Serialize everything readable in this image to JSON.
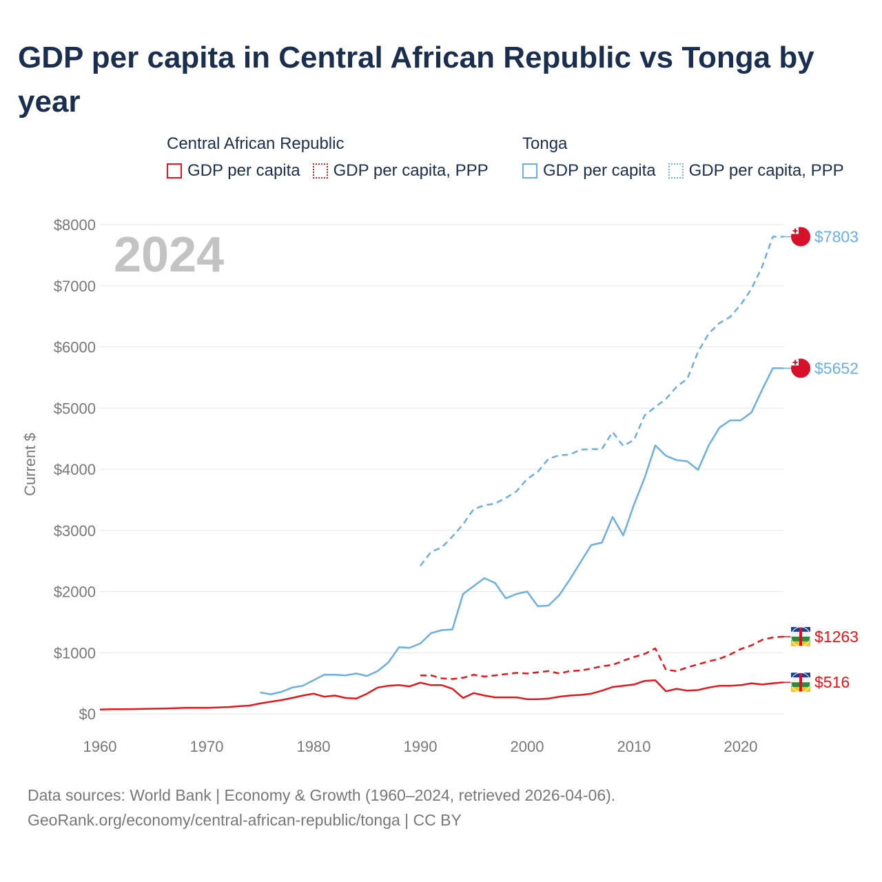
{
  "title": "GDP per capita in Central African Republic vs Tonga by year",
  "legend": {
    "groups": [
      {
        "country": "Central African Republic",
        "color": "#e8141a",
        "items": [
          {
            "label": "GDP per capita",
            "style": "solid"
          },
          {
            "label": "GDP per capita, PPP",
            "style": "dotted"
          }
        ]
      },
      {
        "country": "Tonga",
        "color": "#6aaee6",
        "items": [
          {
            "label": "GDP per capita",
            "style": "solid"
          },
          {
            "label": "GDP per capita, PPP",
            "style": "dotted"
          }
        ]
      }
    ]
  },
  "footer": {
    "sources": "Data sources: World Bank | Economy & Growth (1960–2024, retrieved 2026-04-06).",
    "link": "GeoRank.org/economy/central-african-republic/tonga | CC BY"
  },
  "chart_data": {
    "type": "line",
    "year_label": "2024",
    "ylabel": "Current $",
    "xlim": [
      1960,
      2024
    ],
    "ylim": [
      0,
      8000
    ],
    "x_ticks": [
      1960,
      1970,
      1980,
      1990,
      2000,
      2010,
      2020
    ],
    "x_tick_labels": [
      "1960",
      "1970",
      "1980",
      "1990",
      "2000",
      "2010",
      "2020"
    ],
    "y_ticks": [
      0,
      1000,
      2000,
      3000,
      4000,
      5000,
      6000,
      7000,
      8000
    ],
    "y_tick_labels": [
      "$0",
      "$1000",
      "$2000",
      "$3000",
      "$4000",
      "$5000",
      "$6000",
      "$7000",
      "$8000"
    ],
    "grid": true,
    "series": [
      {
        "name": "Tonga GDP per capita, PPP",
        "country": "Tonga",
        "color": "#6aaee6",
        "dash": true,
        "end_label": "$7803",
        "points": [
          [
            1990,
            2420
          ],
          [
            1991,
            2650
          ],
          [
            1992,
            2720
          ],
          [
            1993,
            2900
          ],
          [
            1994,
            3100
          ],
          [
            1995,
            3350
          ],
          [
            1996,
            3410
          ],
          [
            1997,
            3440
          ],
          [
            1998,
            3530
          ],
          [
            1999,
            3640
          ],
          [
            2000,
            3840
          ],
          [
            2001,
            3960
          ],
          [
            2002,
            4170
          ],
          [
            2003,
            4230
          ],
          [
            2004,
            4240
          ],
          [
            2005,
            4320
          ],
          [
            2006,
            4330
          ],
          [
            2007,
            4330
          ],
          [
            2008,
            4610
          ],
          [
            2009,
            4380
          ],
          [
            2010,
            4480
          ],
          [
            2011,
            4880
          ],
          [
            2012,
            5020
          ],
          [
            2013,
            5150
          ],
          [
            2014,
            5350
          ],
          [
            2015,
            5480
          ],
          [
            2016,
            5920
          ],
          [
            2017,
            6220
          ],
          [
            2018,
            6390
          ],
          [
            2019,
            6490
          ],
          [
            2020,
            6690
          ],
          [
            2021,
            6950
          ],
          [
            2022,
            7310
          ],
          [
            2023,
            7803
          ],
          [
            2024,
            7803
          ]
        ]
      },
      {
        "name": "Tonga GDP per capita",
        "country": "Tonga",
        "color": "#6aaee6",
        "dash": false,
        "end_label": "$5652",
        "points": [
          [
            1975,
            350
          ],
          [
            1976,
            320
          ],
          [
            1977,
            360
          ],
          [
            1978,
            430
          ],
          [
            1979,
            460
          ],
          [
            1980,
            550
          ],
          [
            1981,
            640
          ],
          [
            1982,
            640
          ],
          [
            1983,
            630
          ],
          [
            1984,
            660
          ],
          [
            1985,
            620
          ],
          [
            1986,
            700
          ],
          [
            1987,
            840
          ],
          [
            1988,
            1090
          ],
          [
            1989,
            1080
          ],
          [
            1990,
            1150
          ],
          [
            1991,
            1320
          ],
          [
            1992,
            1370
          ],
          [
            1993,
            1380
          ],
          [
            1994,
            1960
          ],
          [
            1995,
            2090
          ],
          [
            1996,
            2220
          ],
          [
            1997,
            2140
          ],
          [
            1998,
            1890
          ],
          [
            1999,
            1960
          ],
          [
            2000,
            2000
          ],
          [
            2001,
            1760
          ],
          [
            2002,
            1770
          ],
          [
            2003,
            1940
          ],
          [
            2004,
            2200
          ],
          [
            2005,
            2480
          ],
          [
            2006,
            2760
          ],
          [
            2007,
            2800
          ],
          [
            2008,
            3220
          ],
          [
            2009,
            2920
          ],
          [
            2010,
            3420
          ],
          [
            2011,
            3860
          ],
          [
            2012,
            4390
          ],
          [
            2013,
            4220
          ],
          [
            2014,
            4150
          ],
          [
            2015,
            4130
          ],
          [
            2016,
            3990
          ],
          [
            2017,
            4390
          ],
          [
            2018,
            4680
          ],
          [
            2019,
            4800
          ],
          [
            2020,
            4800
          ],
          [
            2021,
            4930
          ],
          [
            2022,
            5300
          ],
          [
            2023,
            5652
          ],
          [
            2024,
            5652
          ]
        ]
      },
      {
        "name": "Central African Republic GDP per capita, PPP",
        "country": "Central African Republic",
        "color": "#e8141a",
        "dash": true,
        "end_label": "$1263",
        "points": [
          [
            1990,
            630
          ],
          [
            1991,
            630
          ],
          [
            1992,
            580
          ],
          [
            1993,
            570
          ],
          [
            1994,
            590
          ],
          [
            1995,
            640
          ],
          [
            1996,
            610
          ],
          [
            1997,
            630
          ],
          [
            1998,
            650
          ],
          [
            1999,
            670
          ],
          [
            2000,
            660
          ],
          [
            2001,
            680
          ],
          [
            2002,
            700
          ],
          [
            2003,
            660
          ],
          [
            2004,
            700
          ],
          [
            2005,
            710
          ],
          [
            2006,
            740
          ],
          [
            2007,
            780
          ],
          [
            2008,
            800
          ],
          [
            2009,
            870
          ],
          [
            2010,
            930
          ],
          [
            2011,
            980
          ],
          [
            2012,
            1070
          ],
          [
            2013,
            720
          ],
          [
            2014,
            700
          ],
          [
            2015,
            760
          ],
          [
            2016,
            810
          ],
          [
            2017,
            860
          ],
          [
            2018,
            900
          ],
          [
            2019,
            970
          ],
          [
            2020,
            1060
          ],
          [
            2021,
            1120
          ],
          [
            2022,
            1210
          ],
          [
            2023,
            1250
          ],
          [
            2024,
            1263
          ]
        ]
      },
      {
        "name": "Central African Republic GDP per capita",
        "country": "Central African Republic",
        "color": "#e8141a",
        "dash": false,
        "end_label": "$516",
        "points": [
          [
            1960,
            70
          ],
          [
            1961,
            75
          ],
          [
            1962,
            76
          ],
          [
            1963,
            78
          ],
          [
            1964,
            82
          ],
          [
            1965,
            85
          ],
          [
            1966,
            88
          ],
          [
            1967,
            92
          ],
          [
            1968,
            98
          ],
          [
            1969,
            100
          ],
          [
            1970,
            98
          ],
          [
            1971,
            105
          ],
          [
            1972,
            112
          ],
          [
            1973,
            125
          ],
          [
            1974,
            135
          ],
          [
            1975,
            170
          ],
          [
            1976,
            200
          ],
          [
            1977,
            225
          ],
          [
            1978,
            260
          ],
          [
            1979,
            300
          ],
          [
            1980,
            330
          ],
          [
            1981,
            280
          ],
          [
            1982,
            300
          ],
          [
            1983,
            260
          ],
          [
            1984,
            250
          ],
          [
            1985,
            330
          ],
          [
            1986,
            430
          ],
          [
            1987,
            460
          ],
          [
            1988,
            470
          ],
          [
            1989,
            450
          ],
          [
            1990,
            510
          ],
          [
            1991,
            470
          ],
          [
            1992,
            470
          ],
          [
            1993,
            410
          ],
          [
            1994,
            260
          ],
          [
            1995,
            340
          ],
          [
            1996,
            300
          ],
          [
            1997,
            270
          ],
          [
            1998,
            270
          ],
          [
            1999,
            270
          ],
          [
            2000,
            240
          ],
          [
            2001,
            240
          ],
          [
            2002,
            250
          ],
          [
            2003,
            280
          ],
          [
            2004,
            300
          ],
          [
            2005,
            310
          ],
          [
            2006,
            330
          ],
          [
            2007,
            380
          ],
          [
            2008,
            440
          ],
          [
            2009,
            460
          ],
          [
            2010,
            480
          ],
          [
            2011,
            540
          ],
          [
            2012,
            550
          ],
          [
            2013,
            370
          ],
          [
            2014,
            410
          ],
          [
            2015,
            380
          ],
          [
            2016,
            390
          ],
          [
            2017,
            430
          ],
          [
            2018,
            460
          ],
          [
            2019,
            460
          ],
          [
            2020,
            470
          ],
          [
            2021,
            500
          ],
          [
            2022,
            480
          ],
          [
            2023,
            500
          ],
          [
            2024,
            516
          ]
        ]
      }
    ]
  }
}
